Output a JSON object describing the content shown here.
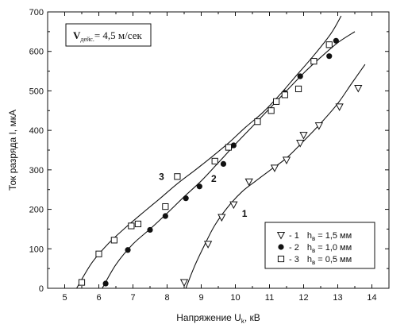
{
  "chart_data": {
    "type": "scatter",
    "title": "",
    "xlabel": "Напряжение U",
    "xlabel_sub": "k",
    "xlabel_unit": ", кВ",
    "ylabel": "Ток разряда  I,  мкА",
    "xlim": [
      4.5,
      14.5
    ],
    "ylim": [
      0,
      700
    ],
    "x_ticks": [
      5,
      6,
      7,
      8,
      9,
      10,
      11,
      12,
      13,
      14
    ],
    "y_ticks": [
      0,
      100,
      200,
      300,
      400,
      500,
      600,
      700
    ],
    "grid": false,
    "legend_position": "bottom-right",
    "annotation": {
      "symbol": "V",
      "sub": "дейс.",
      "text": "= 4,5 м/сек"
    },
    "series": [
      {
        "id": "1",
        "marker": "triangle-down",
        "legend_prefix": "- 1",
        "legend_h": "h",
        "legend_h_sub": "в",
        "legend_value": "= 1,5 мм",
        "curve_label": "1",
        "points": [
          [
            8.5,
            15
          ],
          [
            9.2,
            112
          ],
          [
            9.6,
            180
          ],
          [
            9.95,
            212
          ],
          [
            10.4,
            270
          ],
          [
            11.15,
            305
          ],
          [
            11.5,
            325
          ],
          [
            11.9,
            368
          ],
          [
            12.0,
            388
          ],
          [
            12.45,
            412
          ],
          [
            13.05,
            460
          ],
          [
            13.6,
            507
          ]
        ],
        "fit": [
          [
            8.55,
            0
          ],
          [
            8.8,
            55
          ],
          [
            9.1,
            110
          ],
          [
            9.4,
            160
          ],
          [
            9.8,
            208
          ],
          [
            10.2,
            245
          ],
          [
            10.6,
            272
          ],
          [
            11.0,
            298
          ],
          [
            11.5,
            330
          ],
          [
            12.0,
            373
          ],
          [
            12.5,
            418
          ],
          [
            13.0,
            468
          ],
          [
            13.4,
            518
          ],
          [
            13.8,
            567
          ]
        ]
      },
      {
        "id": "2",
        "marker": "circle",
        "legend_prefix": "- 2",
        "legend_h": "h",
        "legend_h_sub": "в",
        "legend_value": "= 1,0 мм",
        "curve_label": "2",
        "points": [
          [
            6.2,
            12
          ],
          [
            6.85,
            97
          ],
          [
            7.5,
            148
          ],
          [
            7.95,
            183
          ],
          [
            8.55,
            228
          ],
          [
            8.95,
            258
          ],
          [
            9.65,
            315
          ],
          [
            9.95,
            362
          ],
          [
            11.45,
            495
          ],
          [
            11.9,
            537
          ],
          [
            12.75,
            588
          ],
          [
            12.95,
            627
          ]
        ],
        "fit": [
          [
            6.1,
            0
          ],
          [
            6.5,
            60
          ],
          [
            7.0,
            112
          ],
          [
            7.5,
            150
          ],
          [
            8.0,
            190
          ],
          [
            8.5,
            232
          ],
          [
            9.0,
            272
          ],
          [
            9.5,
            318
          ],
          [
            10.0,
            365
          ],
          [
            10.5,
            410
          ],
          [
            11.0,
            455
          ],
          [
            11.5,
            500
          ],
          [
            12.0,
            545
          ],
          [
            12.5,
            585
          ],
          [
            13.0,
            622
          ],
          [
            13.5,
            650
          ]
        ]
      },
      {
        "id": "3",
        "marker": "square",
        "legend_prefix": "- 3",
        "legend_h": "h",
        "legend_h_sub": "в",
        "legend_value": "= 0,5 мм",
        "curve_label": "3",
        "points": [
          [
            5.5,
            15
          ],
          [
            6.0,
            87
          ],
          [
            6.45,
            122
          ],
          [
            6.95,
            158
          ],
          [
            7.15,
            163
          ],
          [
            7.95,
            207
          ],
          [
            8.3,
            283
          ],
          [
            9.4,
            322
          ],
          [
            9.8,
            357
          ],
          [
            10.65,
            422
          ],
          [
            11.05,
            450
          ],
          [
            11.2,
            473
          ],
          [
            11.45,
            490
          ],
          [
            11.85,
            505
          ],
          [
            12.3,
            575
          ],
          [
            12.75,
            617
          ]
        ],
        "fit": [
          [
            5.35,
            0
          ],
          [
            5.8,
            65
          ],
          [
            6.3,
            115
          ],
          [
            6.8,
            155
          ],
          [
            7.3,
            192
          ],
          [
            7.8,
            228
          ],
          [
            8.3,
            265
          ],
          [
            8.8,
            298
          ],
          [
            9.3,
            332
          ],
          [
            9.8,
            368
          ],
          [
            10.3,
            408
          ],
          [
            10.8,
            445
          ],
          [
            11.3,
            490
          ],
          [
            11.8,
            540
          ],
          [
            12.3,
            590
          ],
          [
            12.8,
            645
          ],
          [
            13.1,
            690
          ]
        ]
      }
    ]
  }
}
